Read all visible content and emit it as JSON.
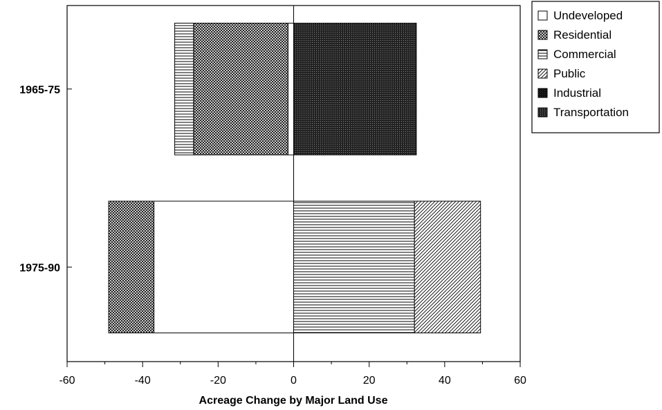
{
  "chart_data": {
    "type": "bar",
    "orientation": "horizontal",
    "stacked": true,
    "xlabel": "Acreage Change by Major Land Use",
    "xlim": [
      -60,
      60
    ],
    "xticks": [
      -60,
      -40,
      -20,
      0,
      20,
      40,
      60
    ],
    "categories": [
      "1965-75",
      "1975-90"
    ],
    "series": [
      {
        "name": "Undeveloped",
        "values": [
          -1.5,
          -37
        ],
        "pattern": "white"
      },
      {
        "name": "Residential",
        "values": [
          -25,
          -12
        ],
        "pattern": "crosshatch"
      },
      {
        "name": "Commercial",
        "values": [
          -5,
          32
        ],
        "pattern": "horizontal"
      },
      {
        "name": "Public",
        "values": [
          0,
          17.5
        ],
        "pattern": "diagonal"
      },
      {
        "name": "Industrial",
        "values": [
          0,
          0
        ],
        "pattern": "dark"
      },
      {
        "name": "Transportation",
        "values": [
          32.5,
          0
        ],
        "pattern": "darkdot"
      }
    ],
    "legend_position": "top-right-outside",
    "grid": false,
    "zero_line": true
  }
}
